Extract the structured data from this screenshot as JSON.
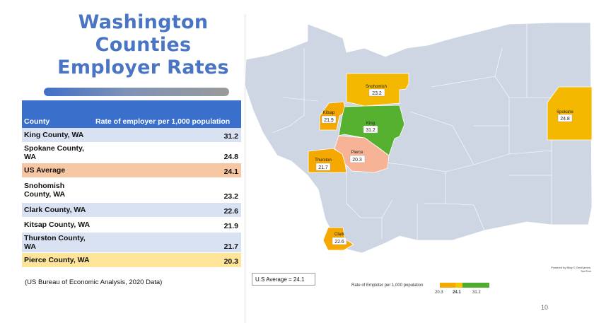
{
  "title": {
    "line1": "Washington",
    "line2": "Counties",
    "line3": "Employer Rates"
  },
  "table": {
    "header_county": "County",
    "header_rate": "Rate of employer per 1,000 population",
    "rows": [
      {
        "county": "King County, WA",
        "rate": "31.2",
        "style": "blue"
      },
      {
        "county": "Spokane County, WA",
        "rate": "24.8",
        "style": "white"
      },
      {
        "county": "US Average",
        "rate": "24.1",
        "style": "orange"
      },
      {
        "county": "Snohomish County, WA",
        "rate": "23.2",
        "style": "white"
      },
      {
        "county": "Clark County, WA",
        "rate": "22.6",
        "style": "blue"
      },
      {
        "county": "Kitsap County, WA",
        "rate": "21.9",
        "style": "white"
      },
      {
        "county": "Thurston County, WA",
        "rate": "21.7",
        "style": "blue"
      },
      {
        "county": "Pierce County, WA",
        "rate": "20.3",
        "style": "yellow"
      }
    ]
  },
  "source": "(US Bureau of Economic Analysis, 2020 Data)",
  "map": {
    "counties": [
      {
        "name": "Snohomish",
        "value": "23.2",
        "color": "#f5b800"
      },
      {
        "name": "Kitsap",
        "value": "21.9",
        "color": "#f5a800"
      },
      {
        "name": "King",
        "value": "31.2",
        "color": "#57b131"
      },
      {
        "name": "Pierce",
        "value": "20.3",
        "color": "#f6b396"
      },
      {
        "name": "Thurston",
        "value": "21.7",
        "color": "#f5a800"
      },
      {
        "name": "Clark",
        "value": "22.6",
        "color": "#f5a800"
      },
      {
        "name": "Spokane",
        "value": "24.8",
        "color": "#f5b800"
      }
    ],
    "base_color": "#cfd6e3",
    "us_average_label": "U.S Average = 24.1",
    "legend": {
      "title": "Rate of Emploter per 1,000 population",
      "min": "20.3",
      "mid": "24.1",
      "max": "31.2"
    },
    "credit": "Powered by Bing © GeoNames, TomTom"
  },
  "page_number": "10"
}
